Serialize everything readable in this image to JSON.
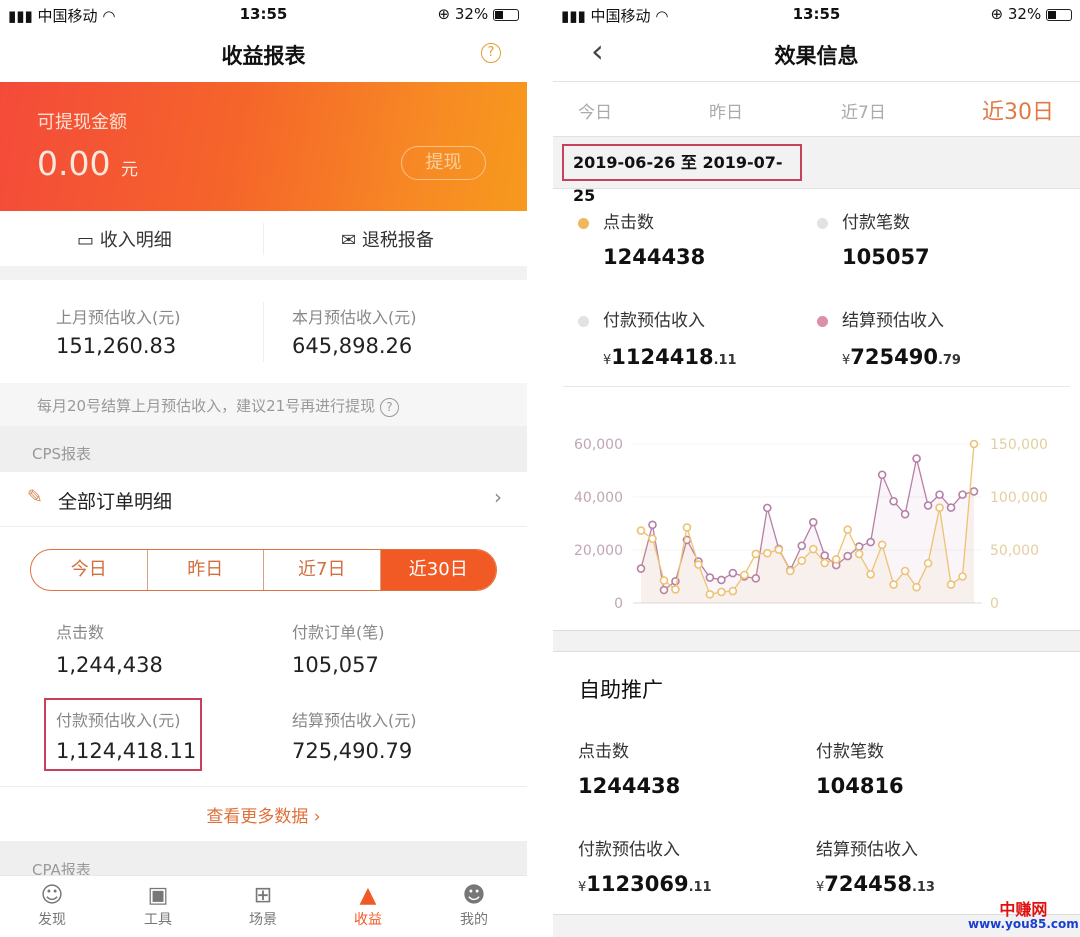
{
  "status": {
    "carrier": "中国移动",
    "time": "13:55",
    "battery": "32%"
  },
  "left": {
    "title": "收益报表",
    "banner": {
      "label": "可提现金额",
      "amount": "0.00",
      "unit": "元",
      "withdraw": "提现"
    },
    "actions": [
      "收入明细",
      "退税报备"
    ],
    "month": {
      "last_label": "上月预估收入(元)",
      "last_value": "151,260.83",
      "this_label": "本月预估收入(元)",
      "this_value": "645,898.26"
    },
    "notice": "每月20号结算上月预估收入，建议21号再进行提现",
    "cps_header": "CPS报表",
    "orders": "全部订单明细",
    "tabs": [
      "今日",
      "昨日",
      "近7日",
      "近30日"
    ],
    "stats": [
      {
        "label": "点击数",
        "value": "1,244,438"
      },
      {
        "label": "付款订单(笔)",
        "value": "105,057"
      },
      {
        "label": "付款预估收入(元)",
        "value": "1,124,418.11"
      },
      {
        "label": "结算预估收入(元)",
        "value": "725,490.79"
      }
    ],
    "more": "查看更多数据",
    "cpa_header": "CPA报表",
    "nav": [
      {
        "label": "发现",
        "icon": "bulb-icon"
      },
      {
        "label": "工具",
        "icon": "briefcase-icon"
      },
      {
        "label": "场景",
        "icon": "grid-icon"
      },
      {
        "label": "收益",
        "icon": "chart-icon"
      },
      {
        "label": "我的",
        "icon": "user-icon"
      }
    ],
    "active_color": "#f15a24"
  },
  "right": {
    "title": "效果信息",
    "tabs": [
      "今日",
      "昨日",
      "近7日",
      "近30日"
    ],
    "date_range": "2019-06-26 至 2019-07-25",
    "summary": [
      {
        "label": "点击数",
        "value": "1244438",
        "dot": "#f0b85c"
      },
      {
        "label": "付款笔数",
        "value": "105057",
        "dot": "#e2e2e2"
      },
      {
        "label": "付款预估收入",
        "currency": "¥",
        "value": "1124418",
        "decimals": ".11",
        "dot": "#e2e2e2"
      },
      {
        "label": "结算预估收入",
        "currency": "¥",
        "value": "725490",
        "decimals": ".79",
        "dot": "#dc8fa8"
      }
    ],
    "self_promo": {
      "title": "自助推广",
      "stats": [
        {
          "label": "点击数",
          "value": "1244438"
        },
        {
          "label": "付款笔数",
          "value": "104816"
        },
        {
          "label": "付款预估收入",
          "currency": "¥",
          "value": "1123069",
          "decimals": ".11"
        },
        {
          "label": "结算预估收入",
          "currency": "¥",
          "value": "724458",
          "decimals": ".13"
        }
      ]
    }
  },
  "watermark": {
    "name": "中赚网",
    "url": "www.you85.com"
  },
  "chart_data": {
    "type": "line",
    "grid": true,
    "left_axis": {
      "ticks": [
        "0",
        "20,000",
        "40,000",
        "60,000"
      ],
      "ylim": [
        0,
        60000
      ]
    },
    "right_axis": {
      "ticks": [
        "0",
        "50,000",
        "100,000",
        "150,000"
      ],
      "ylim": [
        0,
        150000
      ]
    },
    "series": [
      {
        "axis": "left",
        "color": "#b57fa6",
        "values": [
          13000,
          29500,
          4900,
          8200,
          23800,
          15700,
          9600,
          8700,
          11300,
          10000,
          9300,
          35900,
          20400,
          12400,
          21600,
          30500,
          17900,
          14300,
          17700,
          21300,
          23000,
          48400,
          38400,
          33500,
          54500,
          36800,
          40900,
          36000,
          40900,
          42100
        ]
      },
      {
        "axis": "right",
        "color": "#eec274",
        "values": [
          68300,
          60700,
          21300,
          12800,
          71300,
          36300,
          8200,
          10400,
          11300,
          26500,
          46300,
          47000,
          50300,
          30200,
          39900,
          50900,
          37800,
          41200,
          69200,
          46300,
          27100,
          54900,
          17400,
          30200,
          14900,
          37500,
          89900,
          17400,
          25000,
          150000
        ]
      }
    ]
  }
}
